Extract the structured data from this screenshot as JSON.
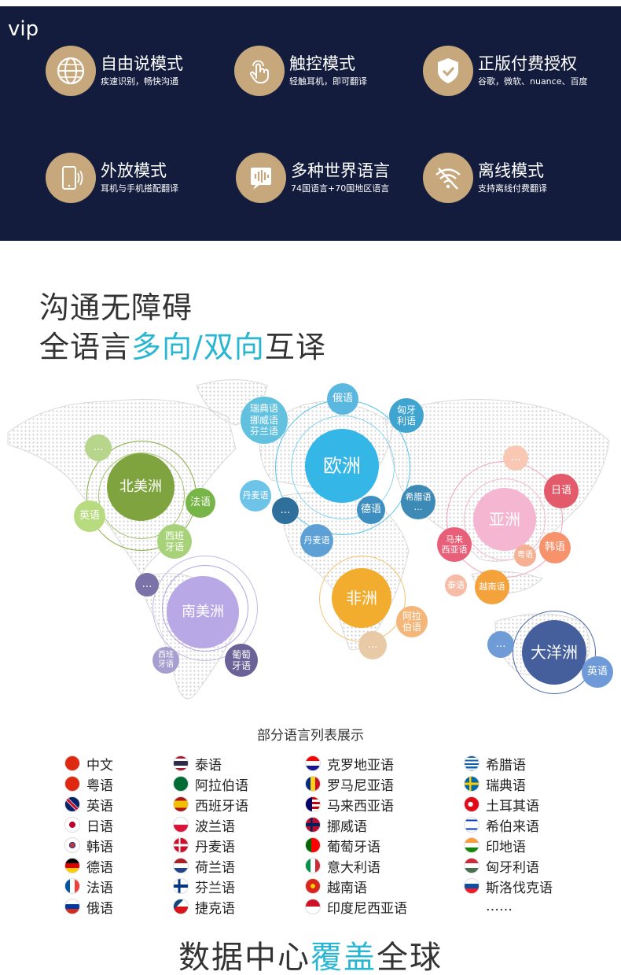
{
  "panel": {
    "vip": "vip",
    "features": [
      {
        "title": "自由说模式",
        "sub": "疾速识别，畅快沟通",
        "icon": "globe-icon"
      },
      {
        "title": "触控模式",
        "sub": "轻触耳机，即可翻译",
        "icon": "touch-hand-icon"
      },
      {
        "title": "正版付费授权",
        "sub": "谷歌，微软、nuance、百度",
        "icon": "shield-check-icon"
      },
      {
        "title": "外放模式",
        "sub": "耳机与手机搭配翻译",
        "icon": "phone-speaker-icon"
      },
      {
        "title": "多种世界语言",
        "sub": "74国语言+70国地区语言",
        "icon": "voice-wave-icon"
      },
      {
        "title": "离线模式",
        "sub": "支持离线付费翻译",
        "icon": "wifi-off-icon"
      }
    ]
  },
  "headline": {
    "line1": "沟通无障碍",
    "line2_prefix": "全语言",
    "line2_accent": "多向/双向",
    "line2_suffix": "互译"
  },
  "map": {
    "north_america": "北美洲",
    "europe": "欧洲",
    "asia": "亚洲",
    "africa": "非洲",
    "south_america": "南美洲",
    "oceania": "大洋洲",
    "labels": {
      "na_french": "法语",
      "na_english": "英语",
      "na_spanish": "西班\n牙语",
      "na_more": "…",
      "eu_nordic": "瑞典语\n挪威语\n芬兰语",
      "eu_russian": "俄语",
      "eu_hungarian": "匈牙\n利语",
      "eu_danish": "丹麦语",
      "eu_danish2": "丹麦语",
      "eu_more": "…",
      "eu_german": "德语",
      "eu_greek": "希腊语\n…",
      "as_japanese": "日语",
      "as_korean": "韩语",
      "as_cantonese": "粤语",
      "as_malay": "马来\n西亚语",
      "as_thai": "泰语",
      "as_vietnamese": "越南语",
      "as_more": "…",
      "af_arabic": "阿拉\n伯语",
      "af_more": "…",
      "sa_spanish": "西班\n牙语",
      "sa_portuguese": "葡萄\n牙语",
      "sa_more": "…",
      "oc_english": "英语",
      "oc_more": "…"
    }
  },
  "list": {
    "title": "部分语言列表展示",
    "col1": [
      "中文",
      "粤语",
      "英语",
      "日语",
      "韩语",
      "德语",
      "法语",
      "俄语"
    ],
    "col2": [
      "泰语",
      "阿拉伯语",
      "西班牙语",
      "波兰语",
      "丹麦语",
      "荷兰语",
      "芬兰语",
      "捷克语"
    ],
    "col3": [
      "克罗地亚语",
      "罗马尼亚语",
      "马来西亚语",
      "挪威语",
      "葡萄牙语",
      "意大利语",
      "越南语",
      "印度尼西亚语"
    ],
    "col4": [
      "希腊语",
      "瑞典语",
      "土耳其语",
      "希伯来语",
      "印地语",
      "匈牙利语",
      "斯洛伐克语"
    ],
    "more": "……"
  },
  "bottom": {
    "prefix": "数据中心",
    "accent": "覆盖",
    "suffix": "全球"
  }
}
